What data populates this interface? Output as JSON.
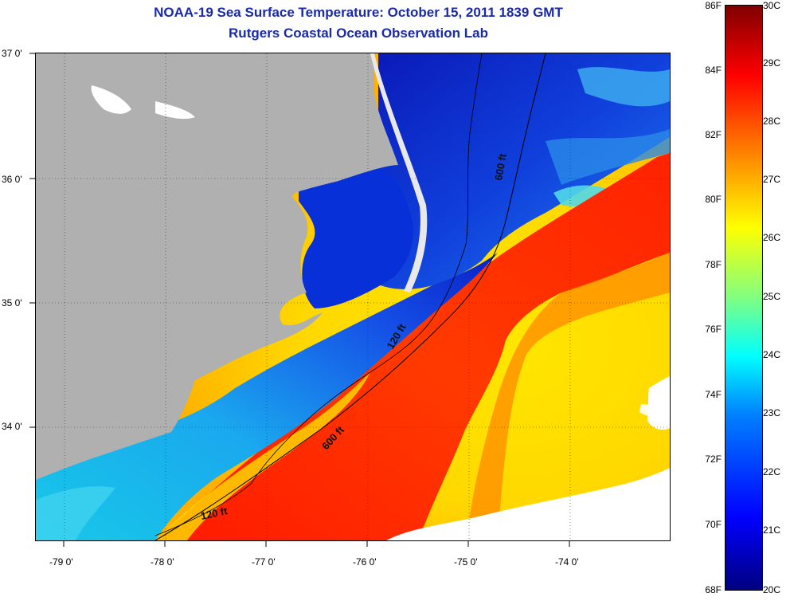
{
  "title": "NOAA-19 Sea Surface Temperature:  October 15, 2011 1839 GMT",
  "subtitle": "Rutgers Coastal Ocean Observation Lab",
  "map": {
    "lat_labels": [
      "37 0'",
      "36 0'",
      "35 0'",
      "34 0'"
    ],
    "lon_labels": [
      "-79 0'",
      "-78 0'",
      "-77 0'",
      "-76 0'",
      "-75 0'",
      "-74 0'"
    ],
    "contour_labels": [
      "600 ft",
      "120 ft",
      "600 ft",
      "120 ft"
    ],
    "colors": {
      "land": "#b0b0b0",
      "no_data": "#ffffff",
      "contour": "#000000"
    }
  },
  "colorbar": {
    "fahrenheit_labels": [
      "86F",
      "84F",
      "82F",
      "80F",
      "78F",
      "76F",
      "74F",
      "72F",
      "70F",
      "68F"
    ],
    "celsius_labels": [
      "30C",
      "29C",
      "28C",
      "27C",
      "26C",
      "25C",
      "24C",
      "23C",
      "22C",
      "21C",
      "20C"
    ],
    "colors": [
      "#000080",
      "#0000ff",
      "#0080ff",
      "#00ffff",
      "#80ff80",
      "#ffff00",
      "#ff8000",
      "#ff0000",
      "#800000"
    ]
  }
}
